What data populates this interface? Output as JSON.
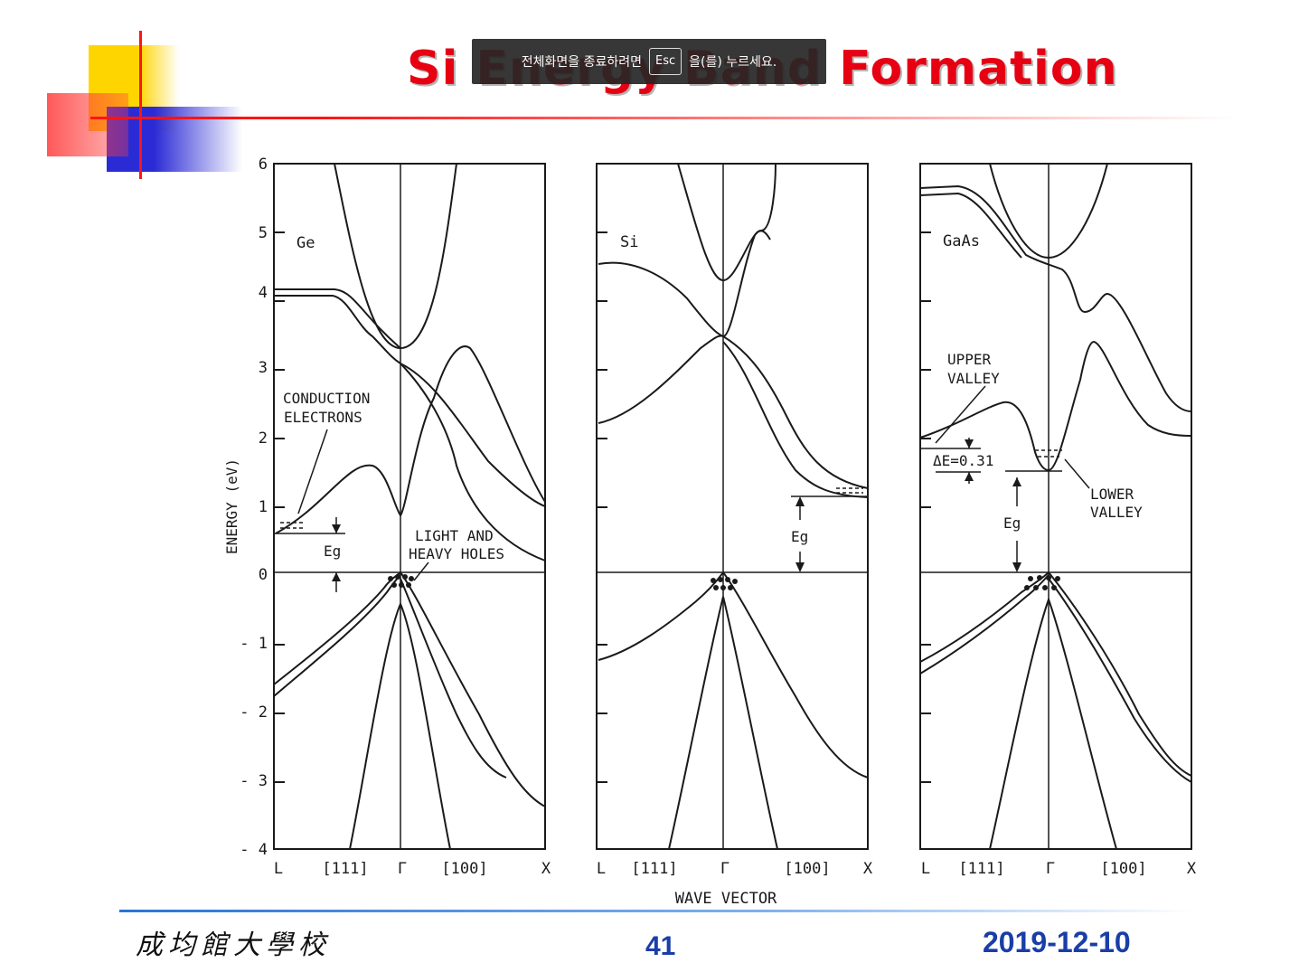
{
  "slide": {
    "title": "Si Energy Band Formation",
    "page_number": "41",
    "date": "2019-12-10",
    "institution": "成均館大學校"
  },
  "fullscreen_notice": {
    "before": "전체화면을 종료하려면",
    "key": "Esc",
    "after": "을(를) 누르세요."
  },
  "figure": {
    "y_axis_title": "ENERGY (eV)",
    "x_axis_title": "WAVE VECTOR",
    "y_ticks": [
      "6",
      "5",
      "4",
      "3",
      "2",
      "1",
      "0",
      "- 1",
      "- 2",
      "- 3",
      "- 4"
    ],
    "x_ticks": [
      "L",
      "[111]",
      "Γ",
      "[100]",
      "X"
    ],
    "panels": [
      {
        "material": "Ge",
        "annotations": {
          "conduction_line1": "CONDUCTION",
          "conduction_line2": "ELECTRONS",
          "eg": "Eg",
          "holes_line1": "LIGHT AND",
          "holes_line2": "HEAVY HOLES"
        }
      },
      {
        "material": "Si",
        "annotations": {
          "eg": "Eg"
        }
      },
      {
        "material": "GaAs",
        "annotations": {
          "upper_line1": "UPPER",
          "upper_line2": "VALLEY",
          "delta_e": "ΔE=0.31",
          "eg": "Eg",
          "lower_line1": "LOWER",
          "lower_line2": "VALLEY"
        }
      }
    ]
  },
  "colors": {
    "title": "#e60012",
    "footer_blue": "#1a3ea8",
    "deco_yellow": "#ffd500",
    "deco_red": "#ff2a2a",
    "deco_blue": "#2b2bd6"
  }
}
